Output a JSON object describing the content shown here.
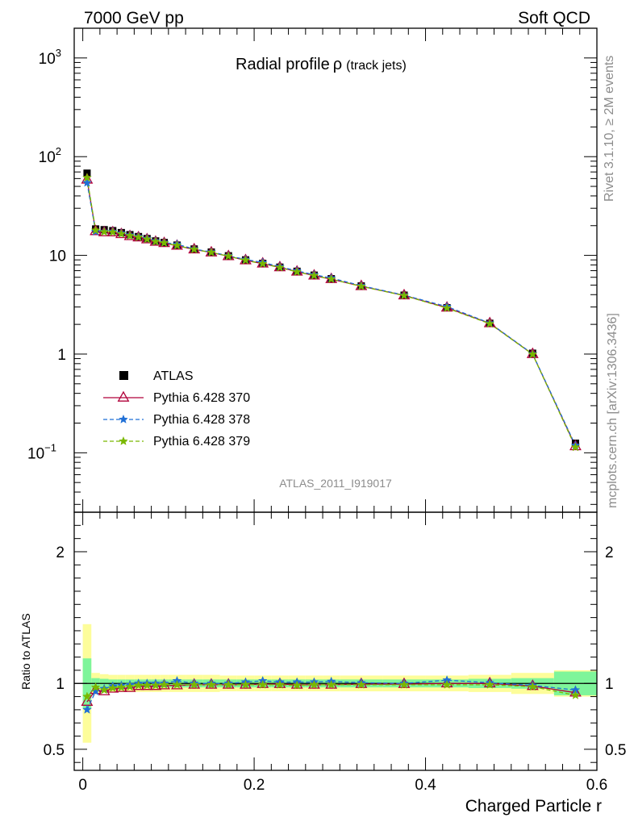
{
  "header": {
    "left": "7000 GeV pp",
    "right": "Soft QCD",
    "side_top": "Rivet 3.1.10, ≥ 2M events",
    "side_bottom": "mcplots.cern.ch [arXiv:1306.3436]"
  },
  "plot_title": {
    "main": "Radial profile",
    "symbol": "ρ",
    "sub": "(track jets)"
  },
  "analysis_tag": "ATLAS_2011_I919017",
  "legend_placement": "left-middle",
  "chart_data": {
    "type": "line",
    "xlabel": "Charged Particle r",
    "ylabel_ratio": "Ratio to ATLAS",
    "xlim": [
      -0.01,
      0.6
    ],
    "ylim_main": [
      0.025,
      2000
    ],
    "yscale_main": "log",
    "ylim_ratio": [
      0.34,
      2.3
    ],
    "x_ticks": [
      "0",
      "0.2",
      "0.4",
      "0.6"
    ],
    "y_ticks_main": [
      {
        "v": 1000,
        "base": "10",
        "exp": "3"
      },
      {
        "v": 100,
        "base": "10",
        "exp": "2"
      },
      {
        "v": 10,
        "base": "10",
        "exp": ""
      },
      {
        "v": 1,
        "base": "1",
        "exp": ""
      },
      {
        "v": 0.1,
        "base": "10",
        "exp": "−1"
      }
    ],
    "y_ticks_ratio": [
      "0.5",
      "1",
      "2"
    ],
    "x": [
      0.005,
      0.015,
      0.025,
      0.035,
      0.045,
      0.055,
      0.065,
      0.075,
      0.085,
      0.095,
      0.11,
      0.13,
      0.15,
      0.17,
      0.19,
      0.21,
      0.23,
      0.25,
      0.27,
      0.29,
      0.325,
      0.375,
      0.425,
      0.475,
      0.525,
      0.575
    ],
    "bin_edges": [
      0.0,
      0.01,
      0.02,
      0.03,
      0.04,
      0.05,
      0.06,
      0.07,
      0.08,
      0.09,
      0.1,
      0.12,
      0.14,
      0.16,
      0.18,
      0.2,
      0.22,
      0.24,
      0.26,
      0.28,
      0.3,
      0.35,
      0.4,
      0.45,
      0.5,
      0.55,
      0.6
    ],
    "data": {
      "name": "ATLAS",
      "values": [
        68,
        18.5,
        18.2,
        17.8,
        17.0,
        16.2,
        15.5,
        14.8,
        14.0,
        13.5,
        12.7,
        11.6,
        10.8,
        9.9,
        9.0,
        8.3,
        7.6,
        6.9,
        6.3,
        5.8,
        4.9,
        3.95,
        2.95,
        2.05,
        1.02,
        0.125
      ],
      "ratio_band_inner": [
        0.19,
        0.04,
        0.035,
        0.03,
        0.03,
        0.03,
        0.03,
        0.03,
        0.03,
        0.03,
        0.03,
        0.03,
        0.03,
        0.03,
        0.03,
        0.03,
        0.03,
        0.03,
        0.03,
        0.03,
        0.03,
        0.03,
        0.03,
        0.035,
        0.04,
        0.09
      ],
      "ratio_band_outer": [
        0.45,
        0.08,
        0.07,
        0.065,
        0.065,
        0.065,
        0.065,
        0.065,
        0.065,
        0.065,
        0.065,
        0.065,
        0.065,
        0.06,
        0.06,
        0.06,
        0.06,
        0.06,
        0.06,
        0.06,
        0.06,
        0.06,
        0.06,
        0.065,
        0.08,
        0.1
      ],
      "color": "#000000"
    },
    "series": [
      {
        "name": "Pythia 6.428 370",
        "color": "#b0003a",
        "line": "solid",
        "marker": "triangle-open",
        "ratio": [
          0.86,
          0.95,
          0.94,
          0.96,
          0.965,
          0.965,
          0.98,
          0.98,
          0.98,
          0.985,
          0.985,
          0.99,
          0.99,
          0.99,
          0.99,
          0.995,
          0.995,
          0.99,
          0.99,
          0.99,
          0.995,
          0.995,
          1.0,
          1.0,
          0.98,
          0.93
        ]
      },
      {
        "name": "Pythia 6.428 378",
        "color": "#1f6fd6",
        "line": "dashed",
        "marker": "star",
        "ratio": [
          0.8,
          0.94,
          0.96,
          0.98,
          0.985,
          0.99,
          1.0,
          1.0,
          1.0,
          1.0,
          1.02,
          1.0,
          1.0,
          1.0,
          1.01,
          1.02,
          1.01,
          1.01,
          1.01,
          1.015,
          1.005,
          1.0,
          1.025,
          1.005,
          0.985,
          0.95
        ]
      },
      {
        "name": "Pythia 6.428 379",
        "color": "#7ab800",
        "line": "dashed",
        "marker": "star",
        "ratio": [
          0.9,
          0.97,
          0.95,
          0.965,
          0.97,
          0.975,
          0.985,
          0.985,
          0.985,
          0.99,
          0.99,
          0.99,
          0.99,
          0.99,
          0.99,
          0.99,
          0.99,
          0.985,
          0.99,
          0.99,
          0.99,
          0.99,
          0.99,
          0.99,
          0.975,
          0.91
        ]
      }
    ],
    "band_colors": {
      "inner": "#7ef59a",
      "outer": "#fdfd9a"
    }
  }
}
